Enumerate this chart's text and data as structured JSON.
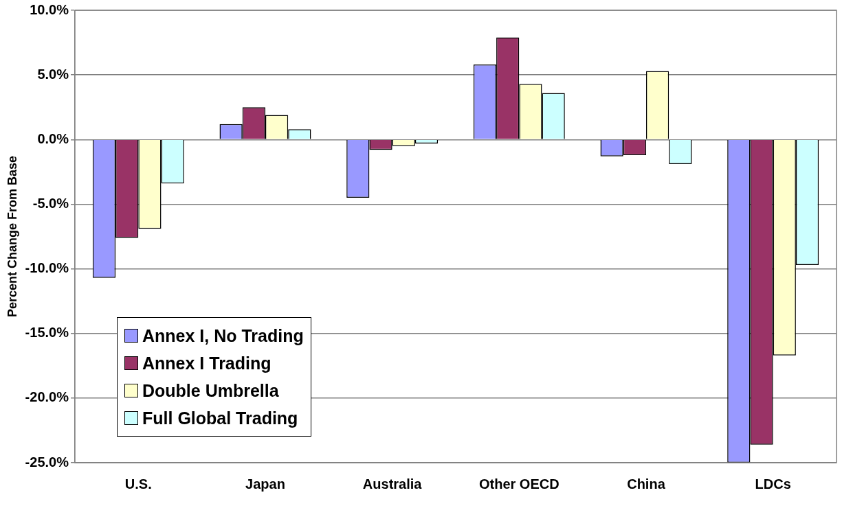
{
  "chart_data": {
    "type": "bar",
    "ylabel": "Percent Change From Base",
    "categories": [
      "U.S.",
      "Japan",
      "Australia",
      "Other OECD",
      "China",
      "LDCs"
    ],
    "series": [
      {
        "name": "Annex I, No Trading",
        "color": "#9999ff",
        "values": [
          -10.7,
          1.2,
          -4.5,
          5.8,
          -1.3,
          -25.0
        ]
      },
      {
        "name": "Annex I Trading",
        "color": "#993366",
        "values": [
          -7.6,
          2.5,
          -0.8,
          7.9,
          -1.2,
          -23.6
        ]
      },
      {
        "name": "Double Umbrella",
        "color": "#ffffcc",
        "values": [
          -6.9,
          1.9,
          -0.5,
          4.3,
          5.3,
          -16.7
        ]
      },
      {
        "name": "Full Global Trading",
        "color": "#ccffff",
        "values": [
          -3.4,
          0.8,
          -0.3,
          3.6,
          -1.9,
          -9.7
        ]
      }
    ],
    "ylim": [
      -25,
      10
    ],
    "yticks": [
      {
        "value": -25,
        "label": "-25.0%"
      },
      {
        "value": -20,
        "label": "-20.0%"
      },
      {
        "value": -15,
        "label": "-15.0%"
      },
      {
        "value": -10,
        "label": "-10.0%"
      },
      {
        "value": -5,
        "label": "-5.0%"
      },
      {
        "value": 0,
        "label": "0.0%"
      },
      {
        "value": 5,
        "label": "5.0%"
      },
      {
        "value": 10,
        "label": "10.0%"
      }
    ],
    "grid": "y",
    "legend": "bottom left"
  }
}
